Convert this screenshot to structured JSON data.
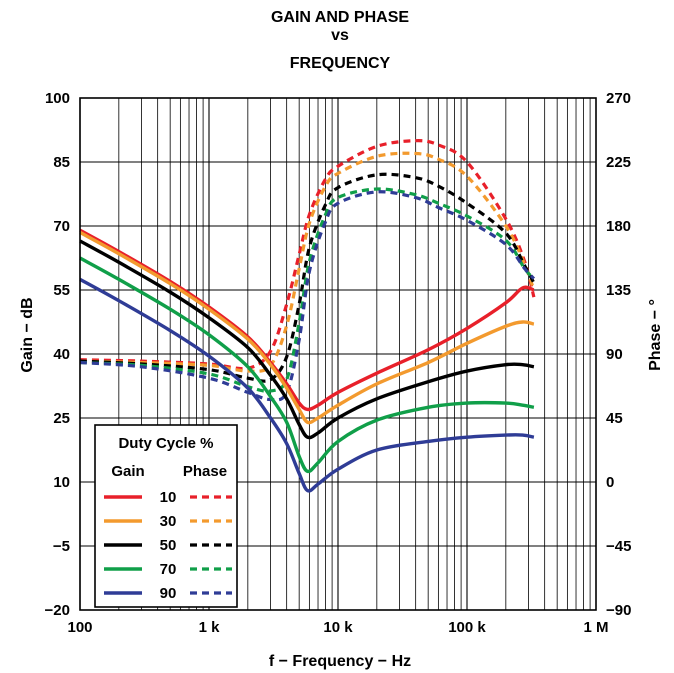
{
  "chart_data": {
    "type": "line",
    "title": [
      "GAIN AND PHASE",
      "vs",
      "FREQUENCY"
    ],
    "xlabel": "f − Frequency − Hz",
    "ylabel_left": "Gain − dB",
    "ylabel_right": "Phase − °",
    "x_scale": "log",
    "xlim": [
      100,
      1000000
    ],
    "ylim_left": [
      -20,
      100
    ],
    "ylim_right": [
      -90,
      270
    ],
    "x_ticks": [
      {
        "value": 100,
        "label": "100"
      },
      {
        "value": 1000,
        "label": "1 k"
      },
      {
        "value": 10000,
        "label": "10 k"
      },
      {
        "value": 100000,
        "label": "100 k"
      },
      {
        "value": 1000000,
        "label": "1 M"
      }
    ],
    "y_ticks_left": [
      "100",
      "85",
      "70",
      "55",
      "40",
      "25",
      "10",
      "−5",
      "−20"
    ],
    "y_ticks_left_values": [
      100,
      85,
      70,
      55,
      40,
      25,
      10,
      -5,
      -20
    ],
    "y_ticks_right": [
      "270",
      "225",
      "180",
      "135",
      "90",
      "45",
      "0",
      "−45",
      "−90"
    ],
    "y_ticks_right_values": [
      270,
      225,
      180,
      135,
      90,
      45,
      0,
      -45,
      -90
    ],
    "grid": true,
    "legend": {
      "title": "Duty Cycle %",
      "col_gain": "Gain",
      "col_phase": "Phase",
      "placement": "bottom-left"
    },
    "series": [
      {
        "name": "10",
        "color": "#e8202a",
        "gain": {
          "x": [
            100,
            200,
            500,
            1000,
            2000,
            3000,
            4000,
            5000,
            5800,
            7000,
            10000,
            20000,
            50000,
            100000,
            200000,
            270000,
            330000
          ],
          "y": [
            69,
            64,
            57,
            51,
            44,
            38,
            33,
            28.5,
            27,
            28,
            31,
            35.5,
            41,
            46,
            52,
            55.5,
            55
          ]
        },
        "phase": {
          "x": [
            100,
            300,
            1000,
            2000,
            3000,
            4000,
            5000,
            6000,
            8000,
            10000,
            20000,
            40000,
            60000,
            100000,
            200000,
            280000,
            330000
          ],
          "y": [
            86,
            85,
            83,
            80,
            92,
            125,
            160,
            188,
            213,
            222,
            236,
            240,
            237,
            225,
            185,
            155,
            130
          ]
        }
      },
      {
        "name": "30",
        "color": "#f39a2e",
        "gain": {
          "x": [
            100,
            200,
            500,
            1000,
            2000,
            3000,
            4000,
            5000,
            5800,
            7000,
            10000,
            20000,
            50000,
            100000,
            200000,
            270000,
            330000
          ],
          "y": [
            68.5,
            63.5,
            56.5,
            50.5,
            43.5,
            37.5,
            32,
            27,
            24,
            25,
            28,
            33,
            38,
            42.5,
            46.5,
            47.5,
            47
          ]
        },
        "phase": {
          "x": [
            100,
            300,
            1000,
            2000,
            3000,
            4000,
            5000,
            6000,
            8000,
            10000,
            20000,
            40000,
            60000,
            100000,
            200000,
            280000,
            330000
          ],
          "y": [
            85,
            84,
            82,
            78,
            82,
            110,
            150,
            182,
            208,
            217,
            229,
            231,
            227,
            215,
            180,
            153,
            135
          ]
        }
      },
      {
        "name": "50",
        "color": "#000000",
        "gain": {
          "x": [
            100,
            200,
            500,
            1000,
            2000,
            3000,
            4000,
            5000,
            5800,
            7000,
            10000,
            20000,
            50000,
            100000,
            200000,
            270000,
            330000
          ],
          "y": [
            66.5,
            61.5,
            54.5,
            48.5,
            41.5,
            35,
            29.5,
            23.5,
            20.5,
            21.5,
            25,
            29.5,
            33.5,
            36,
            37.5,
            37.5,
            37
          ]
        },
        "phase": {
          "x": [
            100,
            300,
            1000,
            2000,
            3000,
            4000,
            5000,
            6000,
            8000,
            10000,
            20000,
            40000,
            60000,
            100000,
            200000,
            280000,
            330000
          ],
          "y": [
            85,
            83,
            79,
            73,
            72,
            88,
            125,
            165,
            195,
            207,
            216,
            214,
            208,
            196,
            175,
            152,
            140
          ]
        }
      },
      {
        "name": "70",
        "color": "#109f49",
        "gain": {
          "x": [
            100,
            200,
            500,
            1000,
            2000,
            3000,
            4000,
            5000,
            5800,
            7000,
            10000,
            20000,
            50000,
            100000,
            200000,
            270000,
            330000
          ],
          "y": [
            62.5,
            57.5,
            50.5,
            44.5,
            37,
            30,
            24,
            16,
            12.5,
            14.5,
            19.5,
            24.5,
            27.5,
            28.5,
            28.5,
            28,
            27.5
          ]
        },
        "phase": {
          "x": [
            100,
            300,
            1000,
            2000,
            3000,
            4000,
            5000,
            6000,
            8000,
            10000,
            20000,
            40000,
            60000,
            100000,
            200000,
            280000,
            330000
          ],
          "y": [
            84,
            82,
            76,
            67,
            64,
            72,
            112,
            155,
            188,
            200,
            206,
            202,
            196,
            187,
            170,
            150,
            143
          ]
        }
      },
      {
        "name": "90",
        "color": "#2f3c96",
        "gain": {
          "x": [
            100,
            200,
            500,
            1000,
            2000,
            3000,
            4000,
            5000,
            5800,
            7000,
            10000,
            20000,
            50000,
            100000,
            200000,
            270000,
            330000
          ],
          "y": [
            57.5,
            52.5,
            45.5,
            39.5,
            32,
            25,
            19,
            12,
            8,
            9.5,
            13,
            17.5,
            19.5,
            20.5,
            21,
            21,
            20.5
          ]
        },
        "phase": {
          "x": [
            100,
            300,
            1000,
            2000,
            3000,
            4000,
            5000,
            6000,
            8000,
            10000,
            20000,
            40000,
            60000,
            100000,
            200000,
            280000,
            330000
          ],
          "y": [
            84,
            81,
            73,
            63,
            58,
            63,
            100,
            148,
            183,
            196,
            204,
            200,
            193,
            184,
            167,
            150,
            143
          ]
        }
      }
    ]
  }
}
